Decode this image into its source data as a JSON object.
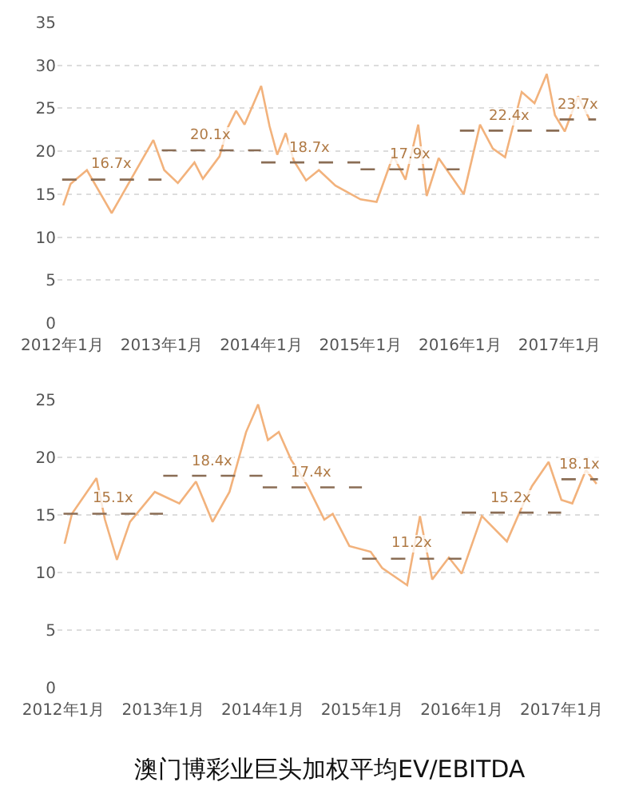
{
  "chart_data": [
    {
      "type": "line",
      "xlim": [
        "2011-12-15",
        "2017-06-01"
      ],
      "ylim": [
        0,
        35
      ],
      "yticks": [
        0,
        5,
        10,
        15,
        20,
        25,
        30,
        35
      ],
      "xticks": [
        {
          "value": "2012-01-01",
          "label": "2012年1月"
        },
        {
          "value": "2013-01-01",
          "label": "2013年1月"
        },
        {
          "value": "2014-01-01",
          "label": "2014年1月"
        },
        {
          "value": "2015-01-01",
          "label": "2015年1月"
        },
        {
          "value": "2016-01-01",
          "label": "2016年1月"
        },
        {
          "value": "2017-01-01",
          "label": "2017年1月"
        }
      ],
      "grid": "y",
      "marker": "none",
      "series": [
        {
          "color": "#f2b27c",
          "x": [
            "2012-01-05",
            "2012-02-01",
            "2012-04-01",
            "2012-07-01",
            "2012-12-01",
            "2013-01-10",
            "2013-03-01",
            "2013-05-01",
            "2013-06-01",
            "2013-08-01",
            "2013-09-01",
            "2013-10-01",
            "2013-11-01",
            "2014-01-01",
            "2014-02-01",
            "2014-03-01",
            "2014-04-01",
            "2014-05-01",
            "2014-06-15",
            "2014-08-01",
            "2014-10-01",
            "2015-01-01",
            "2015-03-01",
            "2015-05-01",
            "2015-06-15",
            "2015-08-01",
            "2015-09-01",
            "2015-10-15",
            "2016-01-15",
            "2016-03-15",
            "2016-05-01",
            "2016-06-15",
            "2016-08-15",
            "2016-10-01",
            "2016-11-15",
            "2016-12-15",
            "2017-01-20",
            "2017-03-10",
            "2017-04-20"
          ],
          "values": [
            13.7,
            16.2,
            17.8,
            12.8,
            21.3,
            17.8,
            16.3,
            18.7,
            16.8,
            19.4,
            22.8,
            24.7,
            23.1,
            27.6,
            22.9,
            19.6,
            22.1,
            18.9,
            16.6,
            17.8,
            16.0,
            14.4,
            14.1,
            19.5,
            16.7,
            23.1,
            14.8,
            19.2,
            15.0,
            23.1,
            20.3,
            19.3,
            26.9,
            25.6,
            29.0,
            24.2,
            22.3,
            26.4,
            23.8
          ]
        },
        {
          "type": "line",
          "line_style": "dashed",
          "color": "#8a6d55",
          "x": [
            "2012-01-01",
            "2012-12-31"
          ],
          "values": [
            16.7,
            16.7
          ]
        },
        {
          "type": "line",
          "line_style": "dashed",
          "color": "#8a6d55",
          "x": [
            "2013-01-01",
            "2013-12-31"
          ],
          "values": [
            20.1,
            20.1
          ]
        },
        {
          "type": "line",
          "line_style": "dashed",
          "color": "#8a6d55",
          "x": [
            "2014-01-01",
            "2014-12-31"
          ],
          "values": [
            18.7,
            18.7
          ]
        },
        {
          "type": "line",
          "line_style": "dashed",
          "color": "#8a6d55",
          "x": [
            "2015-01-01",
            "2015-12-31"
          ],
          "values": [
            17.9,
            17.9
          ]
        },
        {
          "type": "line",
          "line_style": "dashed",
          "color": "#8a6d55",
          "x": [
            "2016-01-01",
            "2016-12-31"
          ],
          "values": [
            22.4,
            22.4
          ]
        },
        {
          "type": "line",
          "line_style": "dashed",
          "color": "#8a6d55",
          "x": [
            "2017-01-01",
            "2017-05-15"
          ],
          "values": [
            23.7,
            23.7
          ]
        }
      ],
      "annotations": [
        {
          "text": "16.7x",
          "x": "2012-07-01",
          "y": 16.7
        },
        {
          "text": "20.1x",
          "x": "2013-07-01",
          "y": 20.1
        },
        {
          "text": "18.7x",
          "x": "2014-07-01",
          "y": 18.7
        },
        {
          "text": "17.9x",
          "x": "2015-07-01",
          "y": 17.9
        },
        {
          "text": "22.4x",
          "x": "2016-07-01",
          "y": 22.4
        },
        {
          "text": "23.7x",
          "x": "2017-03-08",
          "y": 23.7
        }
      ]
    },
    {
      "type": "line",
      "xlim": [
        "2011-12-10",
        "2017-05-25"
      ],
      "ylim": [
        0,
        25
      ],
      "yticks": [
        0,
        5,
        10,
        15,
        20,
        25
      ],
      "xticks": [
        {
          "value": "2012-01-01",
          "label": "2012年1月"
        },
        {
          "value": "2013-01-01",
          "label": "2013年1月"
        },
        {
          "value": "2014-01-01",
          "label": "2014年1月"
        },
        {
          "value": "2015-01-01",
          "label": "2015年1月"
        },
        {
          "value": "2016-01-01",
          "label": "2016年1月"
        },
        {
          "value": "2017-01-01",
          "label": "2017年1月"
        }
      ],
      "grid": "y",
      "marker": "none",
      "series": [
        {
          "color": "#f2b27c",
          "x": [
            "2012-01-05",
            "2012-02-01",
            "2012-05-01",
            "2012-06-01",
            "2012-07-15",
            "2012-09-01",
            "2012-12-01",
            "2013-03-01",
            "2013-05-01",
            "2013-07-01",
            "2013-09-01",
            "2013-11-01",
            "2013-12-15",
            "2014-01-20",
            "2014-03-01",
            "2014-04-15",
            "2014-06-15",
            "2014-08-15",
            "2014-09-15",
            "2014-11-15",
            "2015-02-01",
            "2015-03-15",
            "2015-06-15",
            "2015-08-01",
            "2015-09-15",
            "2015-11-15",
            "2016-01-01",
            "2016-03-15",
            "2016-06-15",
            "2016-08-15",
            "2016-09-15",
            "2016-11-15",
            "2017-01-01",
            "2017-02-10",
            "2017-04-01",
            "2017-05-10"
          ],
          "values": [
            12.5,
            15.1,
            18.2,
            14.6,
            11.1,
            14.4,
            17.0,
            16.0,
            17.9,
            14.4,
            17.0,
            22.2,
            24.6,
            21.5,
            22.2,
            19.8,
            17.5,
            14.6,
            15.1,
            12.3,
            11.8,
            10.4,
            8.9,
            14.9,
            9.4,
            11.3,
            9.9,
            14.9,
            12.7,
            16.0,
            17.5,
            19.6,
            16.3,
            16.0,
            18.9,
            17.7
          ]
        },
        {
          "type": "line",
          "line_style": "dashed",
          "color": "#8a6d55",
          "x": [
            "2012-01-01",
            "2012-12-31"
          ],
          "values": [
            15.1,
            15.1
          ]
        },
        {
          "type": "line",
          "line_style": "dashed",
          "color": "#8a6d55",
          "x": [
            "2013-01-01",
            "2013-12-31"
          ],
          "values": [
            18.4,
            18.4
          ]
        },
        {
          "type": "line",
          "line_style": "dashed",
          "color": "#8a6d55",
          "x": [
            "2014-01-01",
            "2014-12-31"
          ],
          "values": [
            17.4,
            17.4
          ]
        },
        {
          "type": "line",
          "line_style": "dashed",
          "color": "#8a6d55",
          "x": [
            "2015-01-01",
            "2015-12-31"
          ],
          "values": [
            11.2,
            11.2
          ]
        },
        {
          "type": "line",
          "line_style": "dashed",
          "color": "#8a6d55",
          "x": [
            "2016-01-01",
            "2016-12-31"
          ],
          "values": [
            15.2,
            15.2
          ]
        },
        {
          "type": "line",
          "line_style": "dashed",
          "color": "#8a6d55",
          "x": [
            "2017-01-01",
            "2017-05-15"
          ],
          "values": [
            18.1,
            18.1
          ]
        }
      ],
      "annotations": [
        {
          "text": "15.1x",
          "x": "2012-07-01",
          "y": 15.1
        },
        {
          "text": "18.4x",
          "x": "2013-07-01",
          "y": 18.4
        },
        {
          "text": "17.4x",
          "x": "2014-07-01",
          "y": 17.4
        },
        {
          "text": "11.2x",
          "x": "2015-07-01",
          "y": 11.2
        },
        {
          "text": "15.2x",
          "x": "2016-07-01",
          "y": 15.2
        },
        {
          "text": "18.1x",
          "x": "2017-03-08",
          "y": 18.1
        },
        "澳门博彩业巨头加权平均EV/EBITDA"
      ]
    }
  ]
}
